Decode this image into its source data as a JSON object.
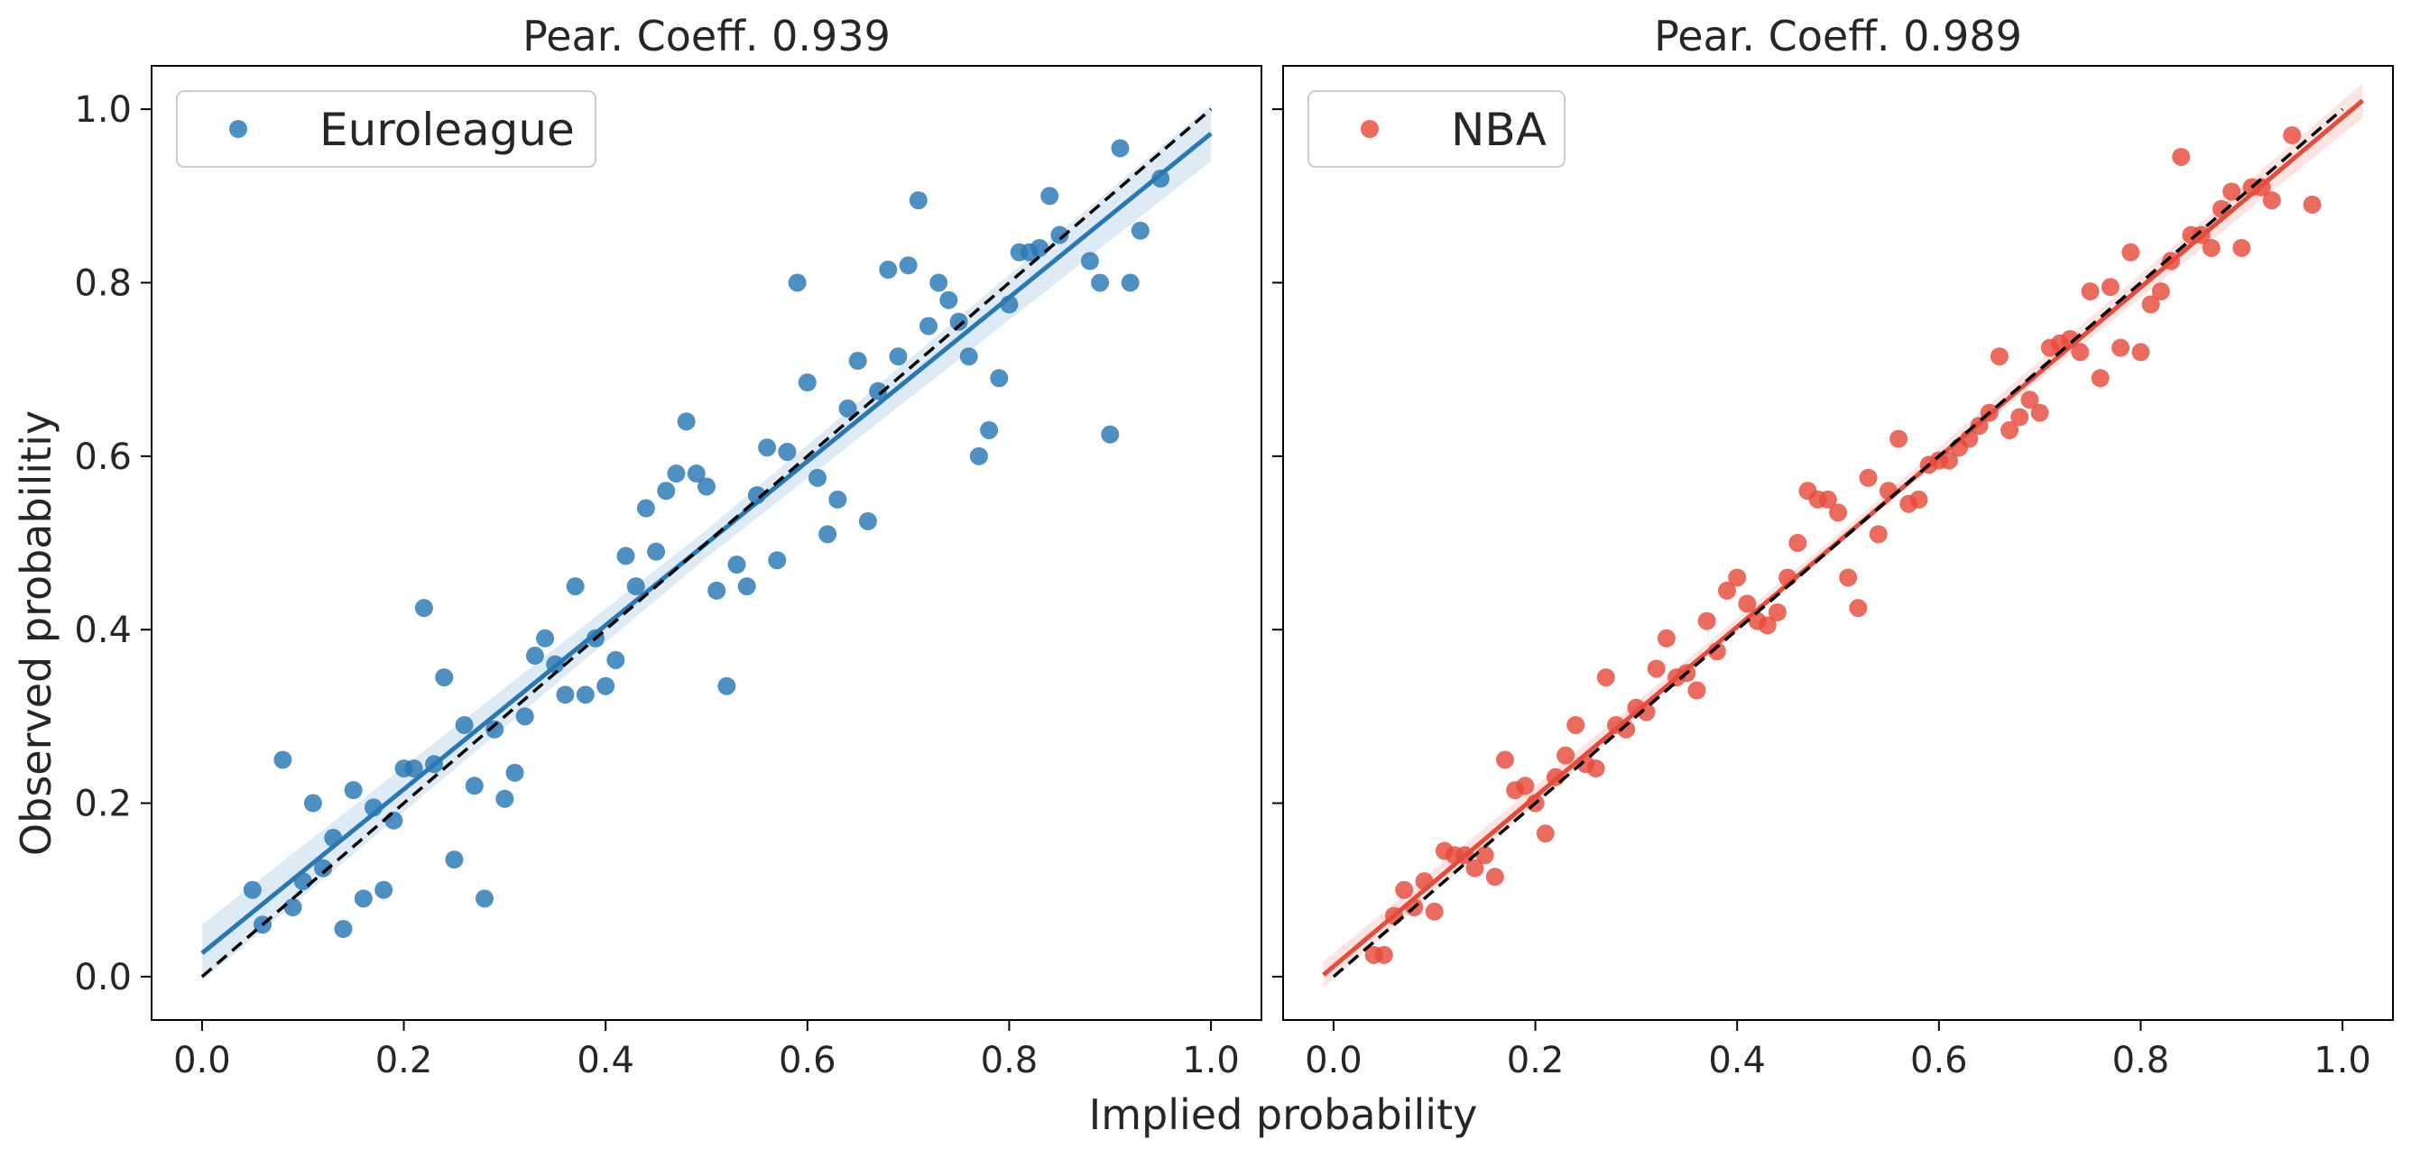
{
  "figure": {
    "xlabel": "Implied probability",
    "ylabel": "Observed probabilitiy"
  },
  "chart_data": [
    {
      "type": "scatter",
      "title": "Pear. Coeff. 0.939",
      "legend": {
        "label": "Euroleague",
        "placement": "top-left"
      },
      "color": "#2878b5",
      "xlim": [
        -0.05,
        1.05
      ],
      "ylim": [
        -0.05,
        1.05
      ],
      "xticks": [
        "0.0",
        "0.2",
        "0.4",
        "0.6",
        "0.8",
        "1.0"
      ],
      "yticks": [
        "0.0",
        "0.2",
        "0.4",
        "0.6",
        "0.8",
        "1.0"
      ],
      "reference_line": {
        "x": [
          0,
          1
        ],
        "y": [
          0,
          1
        ],
        "style": "dashed",
        "color": "#000000"
      },
      "fit_line": {
        "x": [
          0.0,
          1.0
        ],
        "y": [
          0.027,
          0.972
        ],
        "band_x": [
          0.0,
          0.5,
          1.0
        ],
        "band_upper": [
          0.06,
          0.515,
          1.005
        ],
        "band_lower": [
          -0.005,
          0.483,
          0.94
        ]
      },
      "points": [
        [
          0.05,
          0.1
        ],
        [
          0.06,
          0.06
        ],
        [
          0.08,
          0.25
        ],
        [
          0.09,
          0.08
        ],
        [
          0.1,
          0.11
        ],
        [
          0.11,
          0.2
        ],
        [
          0.12,
          0.125
        ],
        [
          0.13,
          0.16
        ],
        [
          0.14,
          0.055
        ],
        [
          0.15,
          0.215
        ],
        [
          0.16,
          0.09
        ],
        [
          0.17,
          0.195
        ],
        [
          0.18,
          0.1
        ],
        [
          0.19,
          0.18
        ],
        [
          0.2,
          0.24
        ],
        [
          0.21,
          0.24
        ],
        [
          0.22,
          0.425
        ],
        [
          0.23,
          0.245
        ],
        [
          0.24,
          0.345
        ],
        [
          0.25,
          0.135
        ],
        [
          0.26,
          0.29
        ],
        [
          0.27,
          0.22
        ],
        [
          0.28,
          0.09
        ],
        [
          0.29,
          0.285
        ],
        [
          0.3,
          0.205
        ],
        [
          0.31,
          0.235
        ],
        [
          0.32,
          0.3
        ],
        [
          0.33,
          0.37
        ],
        [
          0.34,
          0.39
        ],
        [
          0.35,
          0.36
        ],
        [
          0.36,
          0.325
        ],
        [
          0.37,
          0.45
        ],
        [
          0.38,
          0.325
        ],
        [
          0.39,
          0.39
        ],
        [
          0.4,
          0.335
        ],
        [
          0.41,
          0.365
        ],
        [
          0.42,
          0.485
        ],
        [
          0.43,
          0.45
        ],
        [
          0.44,
          0.54
        ],
        [
          0.45,
          0.49
        ],
        [
          0.46,
          0.56
        ],
        [
          0.47,
          0.58
        ],
        [
          0.48,
          0.64
        ],
        [
          0.49,
          0.58
        ],
        [
          0.5,
          0.565
        ],
        [
          0.51,
          0.445
        ],
        [
          0.52,
          0.335
        ],
        [
          0.53,
          0.475
        ],
        [
          0.54,
          0.45
        ],
        [
          0.55,
          0.555
        ],
        [
          0.56,
          0.61
        ],
        [
          0.57,
          0.48
        ],
        [
          0.58,
          0.605
        ],
        [
          0.59,
          0.8
        ],
        [
          0.6,
          0.685
        ],
        [
          0.61,
          0.575
        ],
        [
          0.62,
          0.51
        ],
        [
          0.63,
          0.55
        ],
        [
          0.64,
          0.655
        ],
        [
          0.65,
          0.71
        ],
        [
          0.66,
          0.525
        ],
        [
          0.67,
          0.675
        ],
        [
          0.68,
          0.815
        ],
        [
          0.69,
          0.715
        ],
        [
          0.7,
          0.82
        ],
        [
          0.71,
          0.895
        ],
        [
          0.72,
          0.75
        ],
        [
          0.73,
          0.8
        ],
        [
          0.74,
          0.78
        ],
        [
          0.75,
          0.755
        ],
        [
          0.76,
          0.715
        ],
        [
          0.77,
          0.6
        ],
        [
          0.78,
          0.63
        ],
        [
          0.79,
          0.69
        ],
        [
          0.8,
          0.775
        ],
        [
          0.81,
          0.835
        ],
        [
          0.82,
          0.835
        ],
        [
          0.83,
          0.84
        ],
        [
          0.84,
          0.9
        ],
        [
          0.85,
          0.855
        ],
        [
          0.88,
          0.825
        ],
        [
          0.89,
          0.8
        ],
        [
          0.9,
          0.625
        ],
        [
          0.91,
          0.955
        ],
        [
          0.92,
          0.8
        ],
        [
          0.93,
          0.86
        ],
        [
          0.95,
          0.92
        ]
      ]
    },
    {
      "type": "scatter",
      "title": "Pear. Coeff. 0.989",
      "legend": {
        "label": "NBA",
        "placement": "top-left"
      },
      "color": "#e64b3c",
      "xlim": [
        -0.05,
        1.05
      ],
      "ylim": [
        -0.05,
        1.05
      ],
      "xticks": [
        "0.0",
        "0.2",
        "0.4",
        "0.6",
        "0.8",
        "1.0"
      ],
      "yticks": [],
      "reference_line": {
        "x": [
          0,
          1
        ],
        "y": [
          0,
          1
        ],
        "style": "dashed",
        "color": "#000000"
      },
      "fit_line": {
        "x": [
          -0.01,
          1.02
        ],
        "y": [
          0.002,
          1.01
        ],
        "band_x": [
          -0.01,
          0.5,
          1.02
        ],
        "band_upper": [
          0.017,
          0.51,
          1.03
        ],
        "band_lower": [
          -0.013,
          0.5,
          0.99
        ]
      },
      "points": [
        [
          0.04,
          0.025
        ],
        [
          0.05,
          0.025
        ],
        [
          0.06,
          0.07
        ],
        [
          0.07,
          0.1
        ],
        [
          0.08,
          0.08
        ],
        [
          0.09,
          0.11
        ],
        [
          0.1,
          0.075
        ],
        [
          0.11,
          0.145
        ],
        [
          0.12,
          0.14
        ],
        [
          0.13,
          0.14
        ],
        [
          0.14,
          0.125
        ],
        [
          0.15,
          0.14
        ],
        [
          0.16,
          0.115
        ],
        [
          0.17,
          0.25
        ],
        [
          0.18,
          0.215
        ],
        [
          0.19,
          0.22
        ],
        [
          0.2,
          0.2
        ],
        [
          0.21,
          0.165
        ],
        [
          0.22,
          0.23
        ],
        [
          0.23,
          0.255
        ],
        [
          0.24,
          0.29
        ],
        [
          0.25,
          0.245
        ],
        [
          0.26,
          0.24
        ],
        [
          0.27,
          0.345
        ],
        [
          0.28,
          0.29
        ],
        [
          0.29,
          0.285
        ],
        [
          0.3,
          0.31
        ],
        [
          0.31,
          0.305
        ],
        [
          0.32,
          0.355
        ],
        [
          0.33,
          0.39
        ],
        [
          0.34,
          0.345
        ],
        [
          0.35,
          0.35
        ],
        [
          0.36,
          0.33
        ],
        [
          0.37,
          0.41
        ],
        [
          0.38,
          0.375
        ],
        [
          0.39,
          0.445
        ],
        [
          0.4,
          0.46
        ],
        [
          0.41,
          0.43
        ],
        [
          0.42,
          0.41
        ],
        [
          0.43,
          0.405
        ],
        [
          0.44,
          0.42
        ],
        [
          0.45,
          0.46
        ],
        [
          0.46,
          0.5
        ],
        [
          0.47,
          0.56
        ],
        [
          0.48,
          0.55
        ],
        [
          0.49,
          0.55
        ],
        [
          0.5,
          0.535
        ],
        [
          0.51,
          0.46
        ],
        [
          0.52,
          0.425
        ],
        [
          0.53,
          0.575
        ],
        [
          0.54,
          0.51
        ],
        [
          0.55,
          0.56
        ],
        [
          0.56,
          0.62
        ],
        [
          0.57,
          0.545
        ],
        [
          0.58,
          0.55
        ],
        [
          0.59,
          0.59
        ],
        [
          0.6,
          0.595
        ],
        [
          0.61,
          0.595
        ],
        [
          0.62,
          0.61
        ],
        [
          0.63,
          0.62
        ],
        [
          0.64,
          0.635
        ],
        [
          0.65,
          0.65
        ],
        [
          0.66,
          0.715
        ],
        [
          0.67,
          0.63
        ],
        [
          0.68,
          0.645
        ],
        [
          0.69,
          0.665
        ],
        [
          0.7,
          0.65
        ],
        [
          0.71,
          0.725
        ],
        [
          0.72,
          0.73
        ],
        [
          0.73,
          0.735
        ],
        [
          0.74,
          0.72
        ],
        [
          0.75,
          0.79
        ],
        [
          0.76,
          0.69
        ],
        [
          0.77,
          0.795
        ],
        [
          0.78,
          0.725
        ],
        [
          0.79,
          0.835
        ],
        [
          0.8,
          0.72
        ],
        [
          0.81,
          0.775
        ],
        [
          0.82,
          0.79
        ],
        [
          0.83,
          0.825
        ],
        [
          0.84,
          0.945
        ],
        [
          0.85,
          0.855
        ],
        [
          0.86,
          0.855
        ],
        [
          0.87,
          0.84
        ],
        [
          0.88,
          0.885
        ],
        [
          0.89,
          0.905
        ],
        [
          0.9,
          0.84
        ],
        [
          0.91,
          0.91
        ],
        [
          0.92,
          0.91
        ],
        [
          0.93,
          0.895
        ],
        [
          0.95,
          0.97
        ],
        [
          0.97,
          0.89
        ]
      ]
    }
  ]
}
